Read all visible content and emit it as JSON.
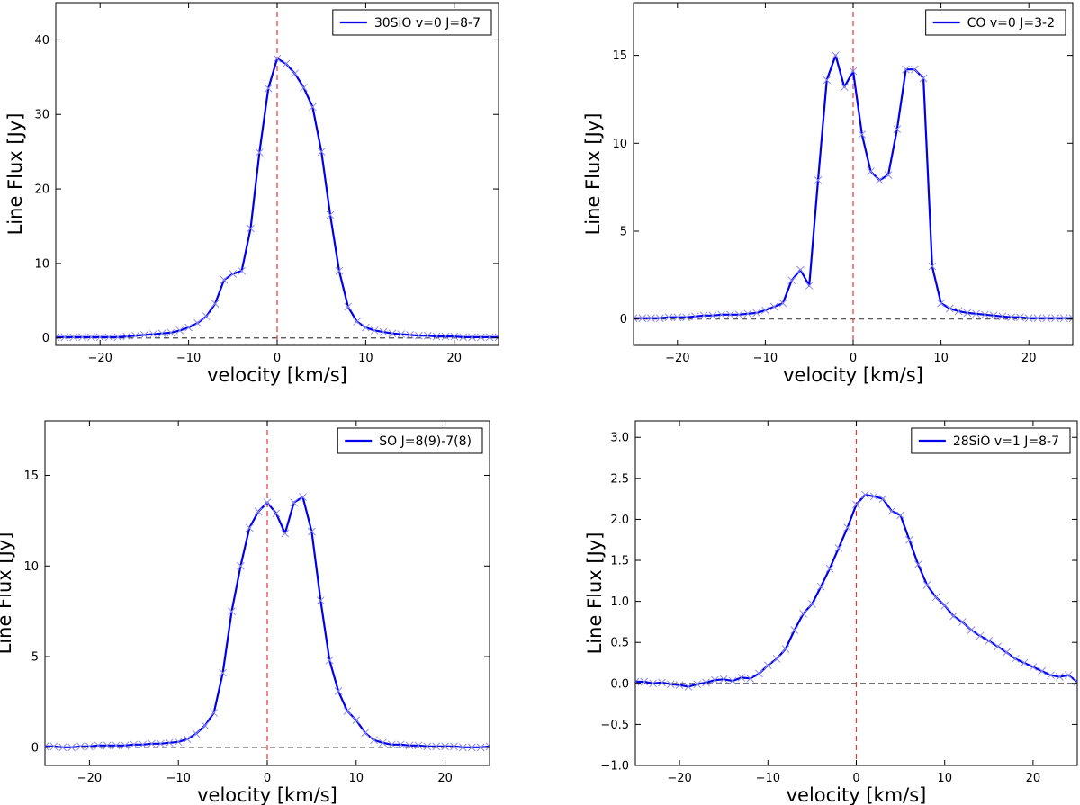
{
  "figure": {
    "colors": {
      "line": "#0000ee",
      "marker": "#8c8cee",
      "zero_line": "#444444",
      "center_line": "#ee3333"
    }
  },
  "chart_data": [
    {
      "type": "line",
      "legend": "30SiO v=0 J=8-7",
      "legend_position": "top-right",
      "xlabel": "velocity [km/s]",
      "ylabel": "Line Flux [Jy]",
      "xlim": [
        -25,
        25
      ],
      "ylim": [
        -1,
        45
      ],
      "xticks": [
        -20,
        -10,
        0,
        10,
        20
      ],
      "yticks": [
        0,
        10,
        20,
        30,
        40
      ],
      "vline_x": 0,
      "hline_y": 0,
      "x": [
        -25,
        -24,
        -23,
        -22,
        -21,
        -20,
        -19,
        -18,
        -17,
        -16,
        -15,
        -14,
        -13,
        -12,
        -11,
        -10,
        -9,
        -8,
        -7,
        -6,
        -5,
        -4,
        -3,
        -2,
        -1,
        0,
        1,
        2,
        3,
        4,
        5,
        6,
        7,
        8,
        9,
        10,
        11,
        12,
        13,
        14,
        15,
        16,
        17,
        18,
        19,
        20,
        21,
        22,
        23,
        24,
        25
      ],
      "y": [
        0.1,
        0.1,
        0.1,
        0.1,
        0.1,
        0.1,
        0.1,
        0.1,
        0.2,
        0.3,
        0.4,
        0.5,
        0.6,
        0.7,
        1.0,
        1.4,
        2.0,
        2.9,
        4.6,
        7.8,
        8.6,
        9.0,
        14.7,
        24.9,
        33.5,
        37.5,
        36.8,
        35.5,
        33.6,
        31.0,
        25.0,
        16.5,
        9.0,
        4.2,
        2.2,
        1.4,
        1.0,
        0.8,
        0.6,
        0.5,
        0.4,
        0.3,
        0.3,
        0.2,
        0.2,
        0.2,
        0.1,
        0.1,
        0.1,
        0.1,
        0.1
      ]
    },
    {
      "type": "line",
      "legend": "CO v=0 J=3-2",
      "legend_position": "top-right",
      "xlabel": "velocity [km/s]",
      "ylabel": "Line Flux [Jy]",
      "xlim": [
        -25,
        25
      ],
      "ylim": [
        -1.5,
        18
      ],
      "xticks": [
        -20,
        -10,
        0,
        10,
        20
      ],
      "yticks": [
        0,
        5,
        10,
        15
      ],
      "vline_x": 0,
      "hline_y": 0,
      "x": [
        -25,
        -24,
        -23,
        -22,
        -21,
        -20,
        -19,
        -18,
        -17,
        -16,
        -15,
        -14,
        -13,
        -12,
        -11,
        -10,
        -9,
        -8,
        -7,
        -6,
        -5,
        -4,
        -3,
        -2,
        -1,
        0,
        1,
        2,
        3,
        4,
        5,
        6,
        7,
        8,
        9,
        10,
        11,
        12,
        13,
        14,
        15,
        16,
        17,
        18,
        19,
        20,
        21,
        22,
        23,
        24,
        25
      ],
      "y": [
        0.05,
        0.05,
        0.05,
        0.05,
        0.1,
        0.1,
        0.1,
        0.15,
        0.2,
        0.2,
        0.25,
        0.25,
        0.25,
        0.3,
        0.35,
        0.5,
        0.7,
        0.9,
        2.2,
        2.8,
        1.9,
        7.9,
        13.6,
        15.0,
        13.2,
        14.1,
        10.5,
        8.4,
        7.9,
        8.2,
        10.8,
        14.2,
        14.2,
        13.7,
        3.0,
        0.9,
        0.6,
        0.45,
        0.35,
        0.3,
        0.25,
        0.2,
        0.15,
        0.1,
        0.1,
        0.05,
        0.05,
        0.05,
        0.05,
        0.05,
        0.05
      ]
    },
    {
      "type": "line",
      "legend": "SO J=8(9)-7(8)",
      "legend_position": "top-right",
      "xlabel": "velocity [km/s]",
      "ylabel": "Line Flux [Jy]",
      "xlim": [
        -25,
        25
      ],
      "ylim": [
        -1,
        18
      ],
      "xticks": [
        -20,
        -10,
        0,
        10,
        20
      ],
      "yticks": [
        0,
        5,
        10,
        15
      ],
      "vline_x": 0,
      "hline_y": 0,
      "x": [
        -25,
        -24,
        -23,
        -22,
        -21,
        -20,
        -19,
        -18,
        -17,
        -16,
        -15,
        -14,
        -13,
        -12,
        -11,
        -10,
        -9,
        -8,
        -7,
        -6,
        -5,
        -4,
        -3,
        -2,
        -1,
        0,
        1,
        2,
        3,
        4,
        5,
        6,
        7,
        8,
        9,
        10,
        11,
        12,
        13,
        14,
        15,
        16,
        17,
        18,
        19,
        20,
        21,
        22,
        23,
        24,
        25
      ],
      "y": [
        0.05,
        0.05,
        0.0,
        0.0,
        0.05,
        0.05,
        0.1,
        0.1,
        0.1,
        0.1,
        0.15,
        0.15,
        0.2,
        0.2,
        0.25,
        0.3,
        0.45,
        0.75,
        1.2,
        1.9,
        4.1,
        7.5,
        10.0,
        12.1,
        13.0,
        13.5,
        12.9,
        11.8,
        13.5,
        13.8,
        11.9,
        8.1,
        4.8,
        3.1,
        2.0,
        1.5,
        0.8,
        0.4,
        0.25,
        0.15,
        0.15,
        0.1,
        0.1,
        0.05,
        0.05,
        0.05,
        0.05,
        0.0,
        0.0,
        0.0,
        0.05
      ]
    },
    {
      "type": "line",
      "legend": "28SiO v=1 J=8-7",
      "legend_position": "top-right",
      "xlabel": "velocity [km/s]",
      "ylabel": "Line Flux [Jy]",
      "xlim": [
        -25,
        25
      ],
      "ylim": [
        -1.0,
        3.2
      ],
      "xticks": [
        -20,
        -10,
        0,
        10,
        20
      ],
      "yticks": [
        -1.0,
        -0.5,
        0.0,
        0.5,
        1.0,
        1.5,
        2.0,
        2.5,
        3.0
      ],
      "vline_x": 0,
      "hline_y": 0,
      "x": [
        -25,
        -24,
        -23,
        -22,
        -21,
        -20,
        -19,
        -18,
        -17,
        -16,
        -15,
        -14,
        -13,
        -12,
        -11,
        -10,
        -9,
        -8,
        -7,
        -6,
        -5,
        -4,
        -3,
        -2,
        -1,
        0,
        1,
        2,
        3,
        4,
        5,
        6,
        7,
        8,
        9,
        10,
        11,
        12,
        13,
        14,
        15,
        16,
        17,
        18,
        19,
        20,
        21,
        22,
        23,
        24,
        25
      ],
      "y": [
        0.02,
        0.02,
        0.0,
        0.01,
        -0.01,
        -0.02,
        -0.04,
        -0.01,
        0.01,
        0.04,
        0.05,
        0.03,
        0.07,
        0.06,
        0.12,
        0.22,
        0.3,
        0.42,
        0.65,
        0.85,
        0.97,
        1.18,
        1.4,
        1.65,
        1.9,
        2.18,
        2.3,
        2.28,
        2.25,
        2.1,
        2.05,
        1.75,
        1.45,
        1.2,
        1.05,
        0.95,
        0.82,
        0.75,
        0.65,
        0.58,
        0.52,
        0.45,
        0.38,
        0.3,
        0.25,
        0.2,
        0.15,
        0.1,
        0.08,
        0.1,
        0.02
      ]
    }
  ]
}
